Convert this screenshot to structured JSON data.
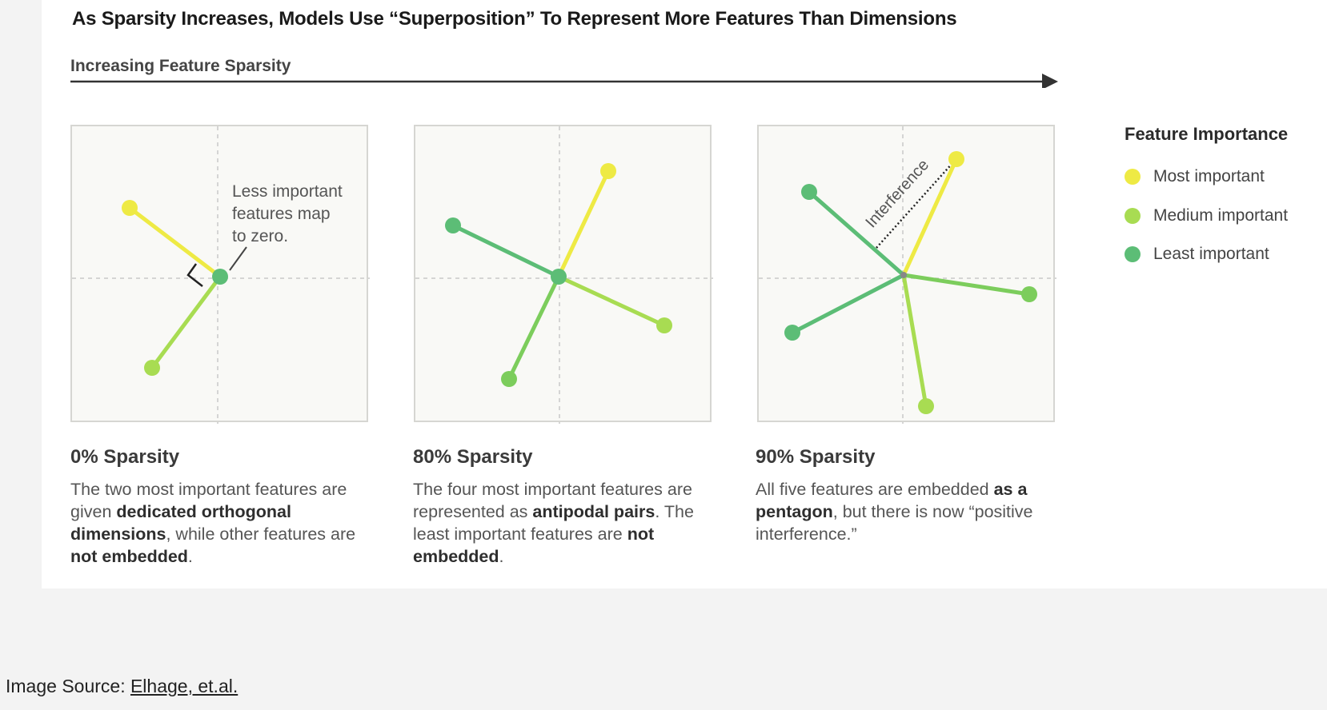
{
  "title": "As Sparsity Increases, Models Use “Superposition” To Represent More Features Than Dimensions",
  "arrow_label": "Increasing Feature Sparsity",
  "colors": {
    "most": "#eeea44",
    "medium": "#a8dc52",
    "least": "#5cbd76",
    "panel_bg": "#f9f9f6",
    "axis": "#c9c9c9"
  },
  "legend": {
    "title": "Feature Importance",
    "items": [
      {
        "label": "Most important",
        "color": "#eeea44"
      },
      {
        "label": "Medium important",
        "color": "#a8dc52"
      },
      {
        "label": "Least important",
        "color": "#5cbd76"
      }
    ]
  },
  "panels": [
    {
      "heading": "0% Sparsity",
      "body": [
        {
          "t": "The two most important features are given "
        },
        {
          "t": "dedicated orthogonal dimensions",
          "b": true
        },
        {
          "t": ", while other features are "
        },
        {
          "t": "not embedded",
          "b": true
        },
        {
          "t": "."
        }
      ],
      "annotation": [
        "Less important",
        "features map",
        "to zero."
      ]
    },
    {
      "heading": "80% Sparsity",
      "body": [
        {
          "t": "The four most important features are represented as "
        },
        {
          "t": "antipodal pairs",
          "b": true
        },
        {
          "t": ". The least important features are "
        },
        {
          "t": "not embedded",
          "b": true
        },
        {
          "t": "."
        }
      ]
    },
    {
      "heading": "90% Sparsity",
      "body": [
        {
          "t": "All five features are embedded "
        },
        {
          "t": "as a pentagon",
          "b": true
        },
        {
          "t": ", but there is now “positive interference.”"
        }
      ],
      "annotation": "Interference"
    }
  ],
  "source": {
    "label": "Image Source: ",
    "link_text": "Elhage, et.al."
  }
}
